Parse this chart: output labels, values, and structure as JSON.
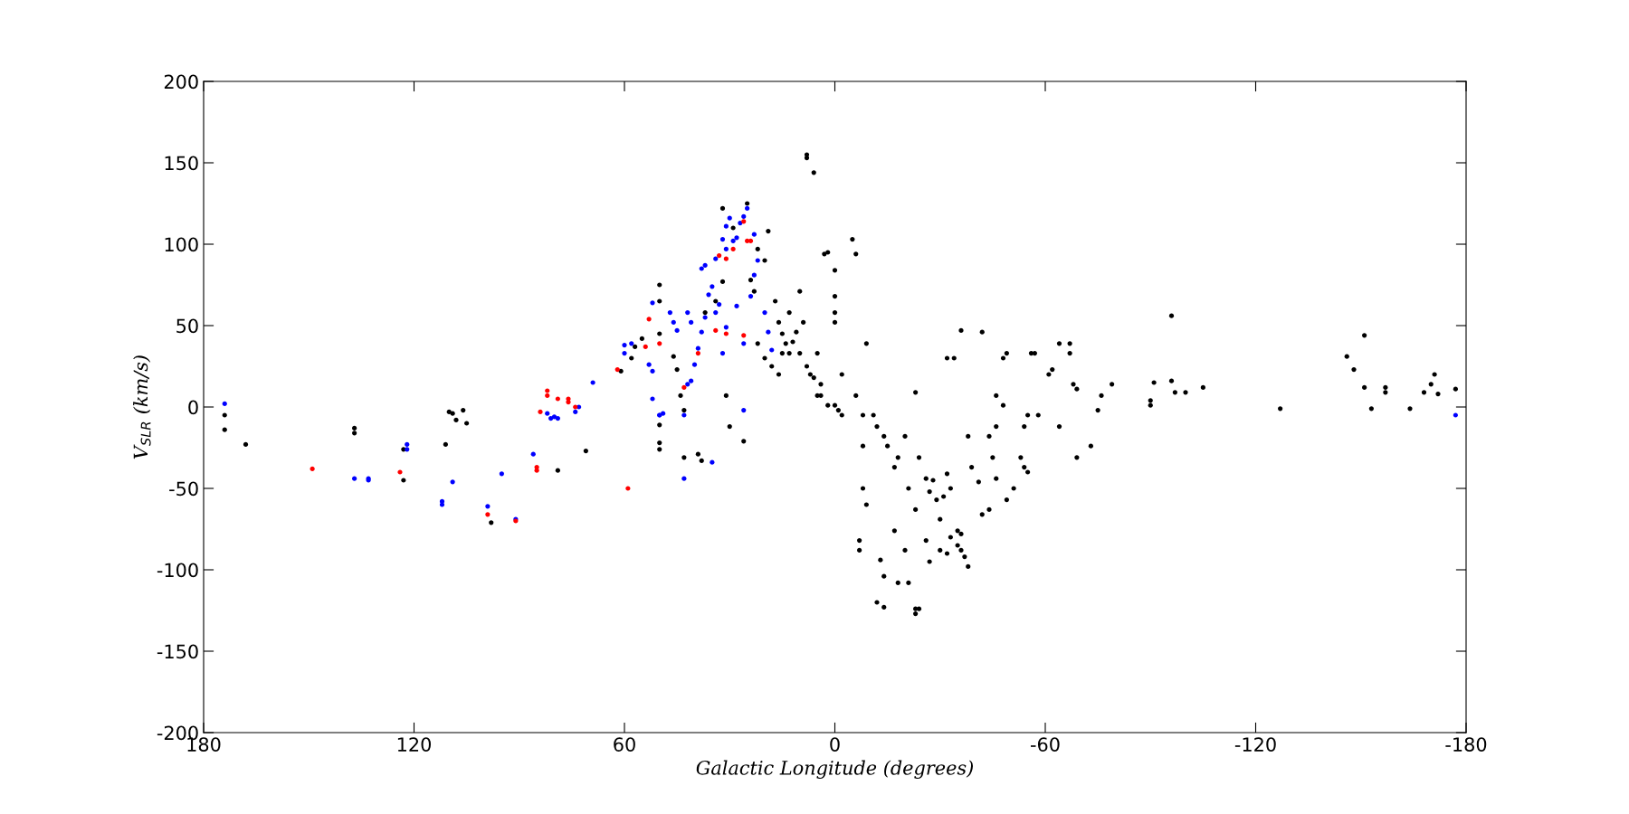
{
  "chart_data": {
    "type": "scatter",
    "xlabel": "Galactic Longitude (degrees)",
    "ylabel": "V$_{SLR}$ (km/s)",
    "xlim": [
      180,
      -180
    ],
    "xticks": [
      180,
      120,
      60,
      0,
      -60,
      -120,
      -180
    ],
    "ylim": [
      -200,
      200
    ],
    "yticks": [
      -200,
      -150,
      -100,
      -50,
      0,
      50,
      100,
      150,
      200
    ],
    "grid": false,
    "marker": "circle",
    "series": [
      {
        "color": "#000000",
        "x": [
          174,
          174,
          168,
          137,
          137,
          123,
          123,
          111,
          110,
          109,
          108,
          106,
          105,
          98,
          79,
          71,
          61,
          58,
          57,
          55,
          50,
          50,
          50,
          50,
          50,
          50,
          46,
          45,
          44,
          43,
          43,
          39,
          38,
          37,
          34,
          32,
          32,
          29,
          31,
          30,
          26,
          25,
          24,
          23,
          22,
          20,
          22,
          19,
          17,
          16,
          15,
          14,
          13,
          13,
          11,
          10,
          10,
          9,
          8,
          8,
          6,
          7,
          5,
          5,
          4,
          3,
          2,
          2,
          0,
          0,
          0,
          0,
          0,
          -1,
          -2,
          -2,
          -5,
          -6,
          -6,
          -8,
          -9,
          -8,
          -8,
          -9,
          -7,
          -7,
          -11,
          -12,
          -14,
          -13,
          -14,
          -15,
          -17,
          -18,
          -12,
          -14,
          -17,
          -18,
          -20,
          -21,
          -23,
          -20,
          -21,
          -23,
          -23,
          -24,
          -23,
          -24,
          -26,
          -26,
          -27,
          -29,
          -30,
          -30,
          -32,
          -33,
          -32,
          -34,
          -35,
          -36,
          -38,
          -36,
          -42,
          -38,
          -39,
          -41,
          -42,
          -44,
          -44,
          -45,
          -46,
          -46,
          -48,
          -46,
          -49,
          -51,
          -48,
          -49,
          -53,
          -54,
          -55,
          -54,
          -55,
          -56,
          -57,
          -61,
          -62,
          -64,
          -58,
          -64,
          -67,
          -67,
          -68,
          -69,
          -69,
          -73,
          -75,
          -76,
          -79,
          -90,
          -90,
          -91,
          -96,
          -96,
          -97,
          -100,
          -105,
          -127,
          -146,
          -148,
          -151,
          -151,
          -153,
          -157,
          -157,
          -164,
          -168,
          -170,
          -171,
          -172,
          -177,
          -28,
          -27,
          -31,
          -33,
          -32,
          -35,
          -37,
          -36,
          15,
          12,
          18,
          16,
          20,
          8,
          6,
          4
        ],
        "values": [
          -5,
          -14,
          -23,
          -13,
          -16,
          -26,
          -45,
          -23,
          -3,
          -4,
          -8,
          -2,
          -10,
          -71,
          -39,
          -27,
          22,
          30,
          37,
          42,
          45,
          65,
          75,
          -22,
          -26,
          -11,
          31,
          23,
          7,
          -2,
          -31,
          -29,
          -33,
          58,
          65,
          77,
          122,
          110,
          7,
          -12,
          -21,
          125,
          78,
          71,
          97,
          90,
          39,
          108,
          65,
          52,
          33,
          39,
          58,
          33,
          46,
          33,
          71,
          52,
          155,
          153,
          144,
          20,
          33,
          7,
          7,
          94,
          95,
          1,
          1,
          58,
          84,
          68,
          52,
          -2,
          -5,
          20,
          103,
          94,
          7,
          -5,
          39,
          -24,
          -50,
          -60,
          -82,
          -88,
          -5,
          -12,
          -18,
          -94,
          -104,
          -24,
          -37,
          -31,
          -120,
          -123,
          -76,
          -108,
          -18,
          -50,
          -63,
          -88,
          -108,
          -124,
          -127,
          -124,
          9,
          -31,
          -44,
          -82,
          -95,
          -57,
          -69,
          -88,
          -41,
          -50,
          30,
          30,
          -76,
          -88,
          -98,
          47,
          46,
          -18,
          -37,
          -46,
          -66,
          -63,
          -18,
          -31,
          -12,
          7,
          1,
          -44,
          -57,
          -50,
          30,
          33,
          -31,
          -12,
          -5,
          -37,
          -40,
          33,
          33,
          20,
          23,
          39,
          -5,
          -12,
          39,
          33,
          14,
          11,
          -31,
          -24,
          -2,
          7,
          14,
          4,
          1,
          15,
          16,
          56,
          9,
          9,
          12,
          -1,
          31,
          23,
          44,
          12,
          -1,
          9,
          12,
          -1,
          9,
          14,
          20,
          8,
          11,
          -45,
          -52,
          -55,
          -80,
          -90,
          -85,
          -92,
          -78,
          45,
          40,
          25,
          20,
          30,
          25,
          18,
          14
        ]
      },
      {
        "color": "#0000ff",
        "x": [
          174,
          137,
          133,
          133,
          122,
          122,
          112,
          112,
          109,
          99,
          95,
          91,
          86,
          82,
          81,
          80,
          79,
          74,
          73,
          69,
          60,
          60,
          58,
          53,
          52,
          52,
          50,
          50,
          49,
          52,
          47,
          46,
          45,
          43,
          43,
          42,
          41,
          40,
          39,
          38,
          37,
          36,
          35,
          38,
          37,
          34,
          32,
          31,
          30,
          31,
          29,
          28,
          27,
          26,
          25,
          23,
          22,
          23,
          24,
          26,
          28,
          31,
          32,
          26,
          20,
          19,
          18,
          35,
          -177,
          42,
          41,
          34,
          33
        ],
        "values": [
          2,
          -44,
          -44,
          -45,
          -23,
          -26,
          -58,
          -60,
          -46,
          -61,
          -41,
          -69,
          -29,
          -4,
          -7,
          -6,
          -7,
          -3,
          0,
          15,
          38,
          33,
          39,
          26,
          22,
          5,
          -5,
          -5,
          -4,
          64,
          58,
          52,
          47,
          -5,
          -44,
          14,
          16,
          26,
          36,
          46,
          55,
          69,
          74,
          85,
          87,
          91,
          103,
          111,
          116,
          97,
          102,
          104,
          113,
          117,
          122,
          106,
          90,
          81,
          68,
          39,
          62,
          49,
          33,
          -2,
          58,
          46,
          35,
          -34,
          -5,
          58,
          52,
          58,
          63
        ]
      },
      {
        "color": "#ff0000",
        "x": [
          149,
          124,
          99,
          91,
          85,
          85,
          82,
          82,
          84,
          79,
          76,
          76,
          74,
          62,
          59,
          54,
          53,
          50,
          43,
          39,
          34,
          33,
          31,
          26,
          25,
          24,
          31,
          26,
          29
        ],
        "values": [
          -38,
          -40,
          -66,
          -70,
          -37,
          -39,
          10,
          7,
          -3,
          5,
          5,
          3,
          0,
          23,
          -50,
          37,
          54,
          39,
          12,
          33,
          47,
          93,
          91,
          114,
          102,
          102,
          45,
          44,
          97
        ]
      }
    ]
  }
}
